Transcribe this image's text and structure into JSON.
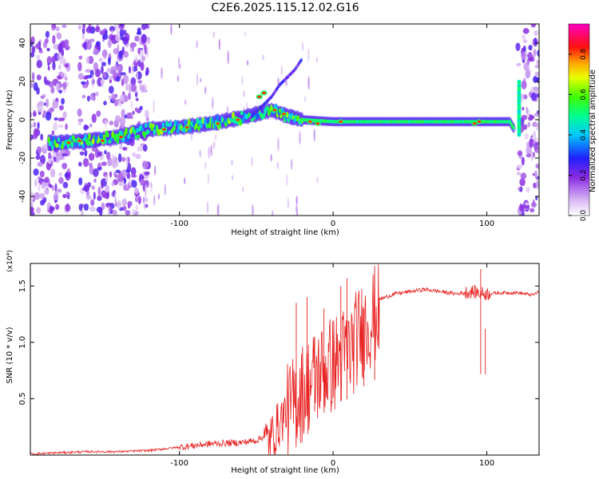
{
  "title": "C2E6.2025.115.12.02.G16",
  "chart_data": [
    {
      "type": "heatmap",
      "xlabel": "Height of straight line (km)",
      "ylabel": "Frequency (Hz)",
      "xlim": [
        -197,
        134
      ],
      "ylim": [
        -50,
        50
      ],
      "x_ticks": [
        -100,
        0,
        100
      ],
      "y_ticks": [
        -40,
        -20,
        0,
        20,
        40
      ],
      "colorbar": {
        "label": "Normalized spectral amplitude",
        "range": [
          0,
          0.95
        ],
        "ticks": [
          0.0,
          0.2,
          0.4,
          0.6,
          0.8
        ],
        "colors": [
          "#ffffff",
          "#c8a0f0",
          "#7b2fd6",
          "#2020ff",
          "#00c8ff",
          "#00ffa0",
          "#60ff00",
          "#e8ff00",
          "#ffa000",
          "#ff2000",
          "#ff00a0"
        ]
      },
      "trace": {
        "x": [
          -180,
          -160,
          -140,
          -120,
          -100,
          -80,
          -60,
          -50,
          -40,
          -30,
          -20,
          0,
          40,
          80,
          115,
          120,
          123
        ],
        "y": [
          -12,
          -11,
          -9,
          -5,
          -4,
          -2,
          1,
          3,
          5,
          2,
          0,
          -1,
          -1,
          -1,
          -1,
          -8,
          20
        ]
      },
      "branch": {
        "x": [
          -55,
          -45,
          -40,
          -35,
          -25,
          -20
        ],
        "y": [
          0,
          8,
          12,
          18,
          26,
          32
        ]
      },
      "noise_bands": [
        [
          -197,
          -172
        ],
        [
          -165,
          -120
        ],
        [
          120,
          134
        ]
      ]
    },
    {
      "type": "line",
      "xlabel": "Height of straight line (km)",
      "ylabel": "SNR (10 * v/v)",
      "y_multiplier": "(x10⁴)",
      "xlim": [
        -197,
        134
      ],
      "ylim": [
        0,
        1.7
      ],
      "x_ticks": [
        -100,
        0,
        100
      ],
      "y_ticks": [
        0.5,
        1.0,
        1.5
      ],
      "color": "#e82020",
      "series": [
        {
          "x": [
            -197,
            -180,
            -160,
            -140,
            -120,
            -100,
            -80,
            -60,
            -50,
            -40,
            -30,
            -20,
            -10,
            0,
            10,
            20,
            30,
            40,
            60,
            80,
            90,
            100,
            110,
            120,
            130,
            134
          ],
          "y": [
            0.01,
            0.02,
            0.03,
            0.03,
            0.04,
            0.07,
            0.1,
            0.11,
            0.13,
            0.2,
            0.45,
            0.65,
            0.8,
            0.9,
            1.0,
            1.22,
            1.38,
            1.43,
            1.47,
            1.43,
            1.45,
            1.43,
            1.44,
            1.44,
            1.42,
            1.45
          ]
        }
      ],
      "spikes": [
        {
          "x": -24,
          "y": 1.35
        },
        {
          "x": -17,
          "y": 1.4
        },
        {
          "x": -12,
          "y": 1.05
        },
        {
          "x": -6,
          "y": 1.3
        },
        {
          "x": 5,
          "y": 1.5
        },
        {
          "x": 9,
          "y": 1.57
        },
        {
          "x": 20,
          "y": 1.3
        },
        {
          "x": 27,
          "y": 1.4
        },
        {
          "x": 96,
          "y": 1.65
        },
        {
          "x": 99,
          "y": 1.12
        }
      ]
    }
  ]
}
